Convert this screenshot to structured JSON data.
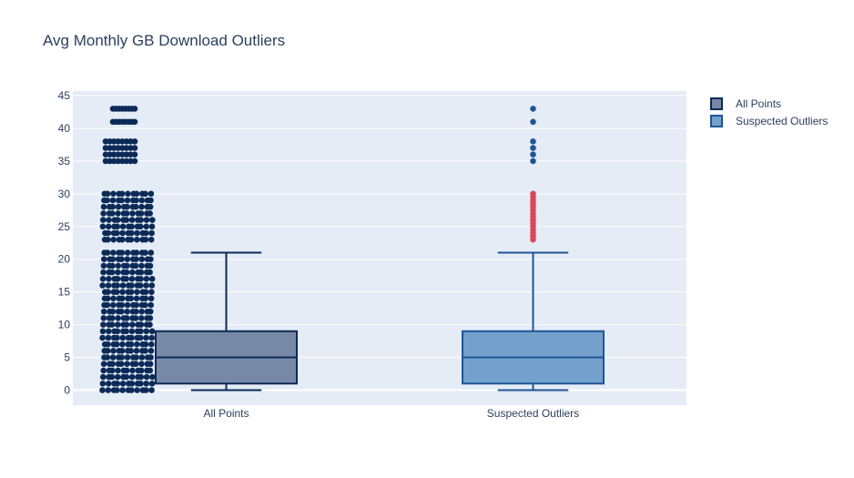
{
  "chart_data": {
    "type": "box",
    "title": "Avg Monthly GB Download Outliers",
    "xlabel": "",
    "ylabel": "",
    "ylim": [
      -2.3,
      45.7
    ],
    "y_ticks": [
      0,
      5,
      10,
      15,
      20,
      25,
      30,
      35,
      40,
      45
    ],
    "categories": [
      "All Points",
      "Suspected Outliers"
    ],
    "grid": true,
    "legend_placement": "top-right",
    "series": [
      {
        "name": "All Points",
        "fill_color": "#7789a6",
        "line_color": "#0b2a57",
        "stats": {
          "lowerfence": 0,
          "q1": 1,
          "median": 5,
          "q3": 9,
          "upperfence": 21
        },
        "points_shown": "all",
        "point_color": "#0b2a57",
        "point_ys": [
          0,
          1,
          2,
          3,
          4,
          5,
          6,
          7,
          8,
          9,
          10,
          11,
          12,
          13,
          14,
          15,
          16,
          17,
          18,
          19,
          20,
          21,
          23,
          24,
          25,
          26,
          27,
          28,
          29,
          30,
          35,
          36,
          37,
          38,
          41,
          43
        ]
      },
      {
        "name": "Suspected Outliers",
        "fill_color": "#74a0cc",
        "line_color": "#1f5597",
        "stats": {
          "lowerfence": 0,
          "q1": 1,
          "median": 5,
          "q3": 9,
          "upperfence": 21
        },
        "points_shown": "suspectedoutliers",
        "outlier_color": "#1f5597",
        "suspected_outlier_color": "#d9485a",
        "outliers": [
          35,
          36,
          37,
          38,
          41,
          43
        ],
        "suspected_outliers": [
          23,
          23.5,
          24,
          24.5,
          25,
          25.5,
          26,
          26.5,
          27,
          27.5,
          28,
          28.5,
          29,
          29.5,
          30
        ]
      }
    ]
  },
  "colors": {
    "plot_bg": "#e5ecf6",
    "grid": "#ffffff",
    "text": "#2a3f5f"
  }
}
